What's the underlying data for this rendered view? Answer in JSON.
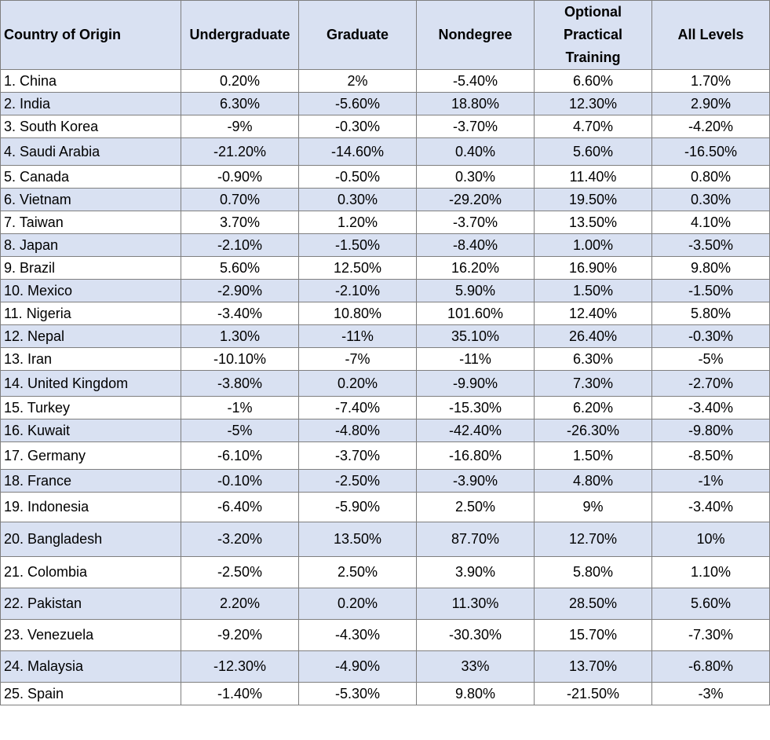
{
  "chart_data": {
    "type": "table",
    "columns": [
      "Country of Origin",
      "Undergraduate",
      "Graduate",
      "Nondegree",
      "Optional Practical Training",
      "All Levels"
    ],
    "rows": [
      [
        "1. China",
        "0.20%",
        "2%",
        "-5.40%",
        "6.60%",
        "1.70%"
      ],
      [
        "2. India",
        "6.30%",
        "-5.60%",
        "18.80%",
        "12.30%",
        "2.90%"
      ],
      [
        "3. South Korea",
        "-9%",
        "-0.30%",
        "-3.70%",
        "4.70%",
        "-4.20%"
      ],
      [
        "4. Saudi Arabia",
        "-21.20%",
        "-14.60%",
        "0.40%",
        "5.60%",
        "-16.50%"
      ],
      [
        "5. Canada",
        "-0.90%",
        "-0.50%",
        "0.30%",
        "11.40%",
        "0.80%"
      ],
      [
        "6. Vietnam",
        "0.70%",
        "0.30%",
        "-29.20%",
        "19.50%",
        "0.30%"
      ],
      [
        "7. Taiwan",
        "3.70%",
        "1.20%",
        "-3.70%",
        "13.50%",
        "4.10%"
      ],
      [
        "8. Japan",
        "-2.10%",
        "-1.50%",
        "-8.40%",
        "1.00%",
        "-3.50%"
      ],
      [
        "9. Brazil",
        "5.60%",
        "12.50%",
        "16.20%",
        "16.90%",
        "9.80%"
      ],
      [
        "10. Mexico",
        "-2.90%",
        "-2.10%",
        "5.90%",
        "1.50%",
        "-1.50%"
      ],
      [
        "11. Nigeria",
        "-3.40%",
        "10.80%",
        "101.60%",
        "12.40%",
        "5.80%"
      ],
      [
        "12. Nepal",
        "1.30%",
        "-11%",
        "35.10%",
        "26.40%",
        "-0.30%"
      ],
      [
        "13. Iran",
        "-10.10%",
        "-7%",
        "-11%",
        "6.30%",
        "-5%"
      ],
      [
        "14. United Kingdom",
        "-3.80%",
        "0.20%",
        "-9.90%",
        "7.30%",
        "-2.70%"
      ],
      [
        "15. Turkey",
        "-1%",
        "-7.40%",
        "-15.30%",
        "6.20%",
        "-3.40%"
      ],
      [
        "16. Kuwait",
        "-5%",
        "-4.80%",
        "-42.40%",
        "-26.30%",
        "-9.80%"
      ],
      [
        "17. Germany",
        "-6.10%",
        "-3.70%",
        "-16.80%",
        "1.50%",
        "-8.50%"
      ],
      [
        "18. France",
        "-0.10%",
        "-2.50%",
        "-3.90%",
        "4.80%",
        "-1%"
      ],
      [
        "19. Indonesia",
        "-6.40%",
        "-5.90%",
        "2.50%",
        "9%",
        "-3.40%"
      ],
      [
        "20. Bangladesh",
        "-3.20%",
        "13.50%",
        "87.70%",
        "12.70%",
        "10%"
      ],
      [
        "21. Colombia",
        "-2.50%",
        "2.50%",
        "3.90%",
        "5.80%",
        "1.10%"
      ],
      [
        "22. Pakistan",
        "2.20%",
        "0.20%",
        "11.30%",
        "28.50%",
        "5.60%"
      ],
      [
        "23. Venezuela",
        "-9.20%",
        "-4.30%",
        "-30.30%",
        "15.70%",
        "-7.30%"
      ],
      [
        "24. Malaysia",
        "-12.30%",
        "-4.90%",
        "33%",
        "13.70%",
        "-6.80%"
      ],
      [
        "25. Spain",
        "-1.40%",
        "-5.30%",
        "9.80%",
        "-21.50%",
        "-3%"
      ]
    ],
    "colors": {
      "header_fill": "#d9e1f2",
      "band_fill": "#d9e1f2",
      "plain_fill": "#ffffff",
      "border": "#7f7f7f"
    }
  }
}
